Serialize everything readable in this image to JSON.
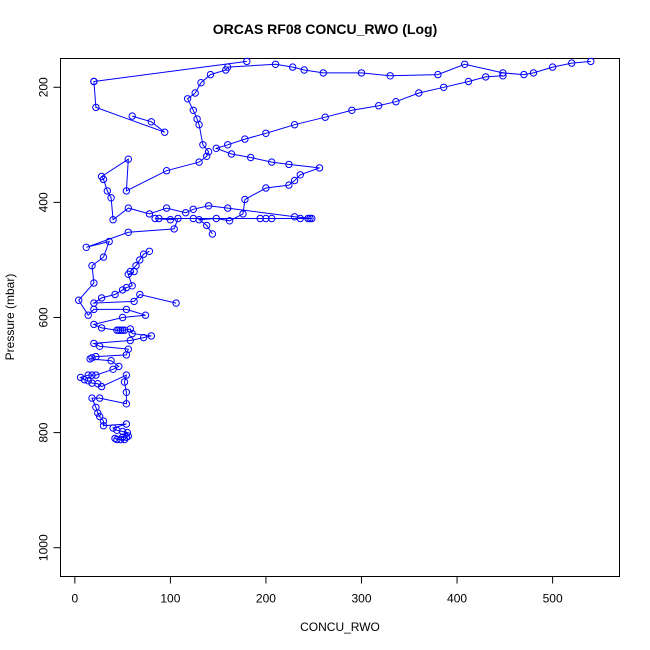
{
  "chart_data": {
    "type": "line",
    "title": "ORCAS RF08 CONCU_RWO (Log)",
    "xlabel": "CONCU_RWO",
    "ylabel": "Pressure (mbar)",
    "xlim": [
      -15,
      570
    ],
    "ylim": [
      1050,
      150
    ],
    "y_reversed": true,
    "grid": false,
    "x_ticks": [
      0,
      100,
      200,
      300,
      400,
      500
    ],
    "y_ticks": [
      200,
      400,
      600,
      800,
      1000
    ],
    "color": "#0000ff",
    "marker": "open-circle",
    "series": [
      {
        "points": [
          [
            52,
            812
          ],
          [
            48,
            812
          ],
          [
            44,
            812
          ],
          [
            42,
            810
          ],
          [
            50,
            808
          ],
          [
            54,
            808
          ],
          [
            56,
            806
          ],
          [
            55,
            800
          ],
          [
            50,
            798
          ],
          [
            44,
            796
          ],
          [
            40,
            792
          ],
          [
            54,
            785
          ],
          [
            30,
            788
          ],
          [
            30,
            780
          ],
          [
            26,
            772
          ],
          [
            24,
            766
          ],
          [
            22,
            756
          ],
          [
            18,
            740
          ],
          [
            26,
            740
          ],
          [
            54,
            750
          ],
          [
            54,
            730
          ],
          [
            52,
            712
          ],
          [
            54,
            700
          ],
          [
            28,
            720
          ],
          [
            24,
            715
          ],
          [
            18,
            714
          ],
          [
            14,
            710
          ],
          [
            10,
            708
          ],
          [
            6,
            704
          ],
          [
            14,
            700
          ],
          [
            18,
            700
          ],
          [
            22,
            700
          ],
          [
            40,
            690
          ],
          [
            46,
            685
          ],
          [
            38,
            675
          ],
          [
            16,
            672
          ],
          [
            18,
            670
          ],
          [
            22,
            668
          ],
          [
            54,
            665
          ],
          [
            56,
            655
          ],
          [
            26,
            650
          ],
          [
            20,
            645
          ],
          [
            58,
            640
          ],
          [
            72,
            635
          ],
          [
            80,
            632
          ],
          [
            60,
            628
          ],
          [
            58,
            620
          ],
          [
            52,
            622
          ],
          [
            50,
            622
          ],
          [
            48,
            622
          ],
          [
            46,
            622
          ],
          [
            44,
            622
          ],
          [
            28,
            618
          ],
          [
            20,
            612
          ],
          [
            50,
            600
          ],
          [
            74,
            596
          ],
          [
            54,
            586
          ],
          [
            20,
            586
          ],
          [
            14,
            596
          ],
          [
            4,
            570
          ],
          [
            20,
            540
          ],
          [
            18,
            510
          ],
          [
            30,
            495
          ],
          [
            36,
            468
          ],
          [
            12,
            478
          ],
          [
            56,
            452
          ],
          [
            104,
            446
          ],
          [
            108,
            428
          ],
          [
            100,
            430
          ],
          [
            84,
            428
          ],
          [
            88,
            428
          ],
          [
            124,
            428
          ],
          [
            200,
            428
          ],
          [
            194,
            428
          ],
          [
            206,
            428
          ],
          [
            236,
            428
          ],
          [
            244,
            428
          ],
          [
            246,
            428
          ],
          [
            248,
            428
          ],
          [
            230,
            425
          ],
          [
            160,
            410
          ],
          [
            140,
            406
          ],
          [
            124,
            412
          ],
          [
            116,
            418
          ],
          [
            96,
            410
          ],
          [
            78,
            420
          ],
          [
            56,
            410
          ],
          [
            40,
            430
          ],
          [
            38,
            392
          ],
          [
            34,
            380
          ],
          [
            30,
            360
          ],
          [
            28,
            355
          ],
          [
            56,
            325
          ],
          [
            54,
            380
          ],
          [
            96,
            345
          ],
          [
            130,
            330
          ],
          [
            138,
            320
          ],
          [
            140,
            312
          ],
          [
            134,
            300
          ],
          [
            130,
            265
          ],
          [
            128,
            255
          ],
          [
            124,
            240
          ],
          [
            118,
            220
          ],
          [
            126,
            210
          ],
          [
            132,
            192
          ],
          [
            142,
            178
          ],
          [
            158,
            170
          ],
          [
            160,
            165
          ],
          [
            210,
            160
          ],
          [
            228,
            165
          ],
          [
            240,
            170
          ],
          [
            260,
            175
          ],
          [
            300,
            175
          ],
          [
            330,
            180
          ],
          [
            380,
            178
          ],
          [
            408,
            160
          ],
          [
            448,
            175
          ],
          [
            470,
            178
          ],
          [
            480,
            175
          ],
          [
            500,
            165
          ],
          [
            520,
            158
          ],
          [
            540,
            155
          ]
        ]
      },
      {
        "points": [
          [
            20,
            190
          ],
          [
            22,
            235
          ],
          [
            94,
            278
          ],
          [
            80,
            260
          ],
          [
            60,
            250
          ]
        ]
      },
      {
        "points": [
          [
            20,
            190
          ],
          [
            180,
            155
          ]
        ]
      },
      {
        "points": [
          [
            144,
            455
          ],
          [
            138,
            440
          ],
          [
            130,
            430
          ],
          [
            148,
            428
          ],
          [
            162,
            432
          ],
          [
            176,
            420
          ],
          [
            178,
            395
          ],
          [
            200,
            375
          ],
          [
            224,
            370
          ],
          [
            230,
            362
          ],
          [
            236,
            352
          ],
          [
            256,
            340
          ],
          [
            224,
            334
          ],
          [
            206,
            330
          ],
          [
            184,
            322
          ],
          [
            164,
            316
          ],
          [
            148,
            306
          ],
          [
            160,
            300
          ],
          [
            178,
            290
          ],
          [
            200,
            280
          ],
          [
            230,
            265
          ],
          [
            262,
            252
          ],
          [
            290,
            240
          ],
          [
            318,
            232
          ],
          [
            336,
            225
          ],
          [
            360,
            210
          ],
          [
            386,
            200
          ],
          [
            412,
            190
          ],
          [
            430,
            182
          ],
          [
            448,
            180
          ]
        ]
      },
      {
        "points": [
          [
            62,
            520
          ],
          [
            56,
            525
          ],
          [
            60,
            545
          ],
          [
            54,
            548
          ],
          [
            50,
            552
          ],
          [
            42,
            560
          ],
          [
            28,
            566
          ],
          [
            20,
            575
          ],
          [
            62,
            572
          ],
          [
            68,
            560
          ],
          [
            106,
            575
          ]
        ]
      },
      {
        "points": [
          [
            78,
            485
          ],
          [
            72,
            490
          ],
          [
            68,
            500
          ],
          [
            64,
            510
          ],
          [
            58,
            520
          ]
        ]
      }
    ]
  }
}
